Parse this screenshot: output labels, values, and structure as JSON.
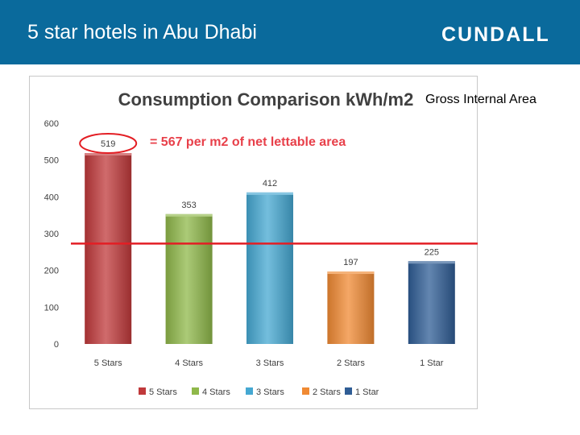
{
  "slide": {
    "title": "5 star hotels in Abu Dhabi",
    "logo_text": "CUNDALL",
    "header_color": "#0a6a9c",
    "note_gross_internal_area": "Gross Internal Area",
    "annotation": "= 567 per m2 of net lettable area",
    "reference_line_color": "#e31e24"
  },
  "chart_data": {
    "type": "bar",
    "title": "Consumption Comparison kWh/m2",
    "categories": [
      "5 Stars",
      "4 Stars",
      "3 Stars",
      "2 Stars",
      "1 Star"
    ],
    "values": [
      519,
      353,
      412,
      197,
      225
    ],
    "colors": [
      "#c0393b",
      "#8fb84a",
      "#45a8d2",
      "#f08a33",
      "#2f5d95"
    ],
    "ylim": [
      0,
      600
    ],
    "yticks": [
      0,
      100,
      200,
      300,
      400,
      500,
      600
    ],
    "reference_line_value": 273,
    "legend": [
      "5 Stars",
      "4 Stars",
      "3 Stars",
      "2 Stars",
      "1 Star"
    ],
    "legend_position": "bottom",
    "grid": false
  }
}
